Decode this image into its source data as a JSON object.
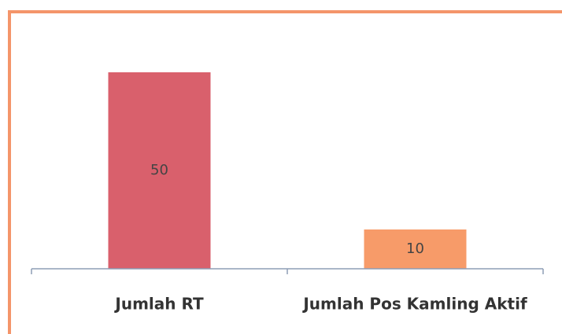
{
  "chart_data": {
    "type": "bar",
    "categories": [
      "Jumlah RT",
      "Jumlah Pos Kamling Aktif"
    ],
    "values": [
      50,
      10
    ],
    "colors": [
      "#d9606c",
      "#f79b69"
    ],
    "ylim": [
      0,
      60
    ]
  }
}
